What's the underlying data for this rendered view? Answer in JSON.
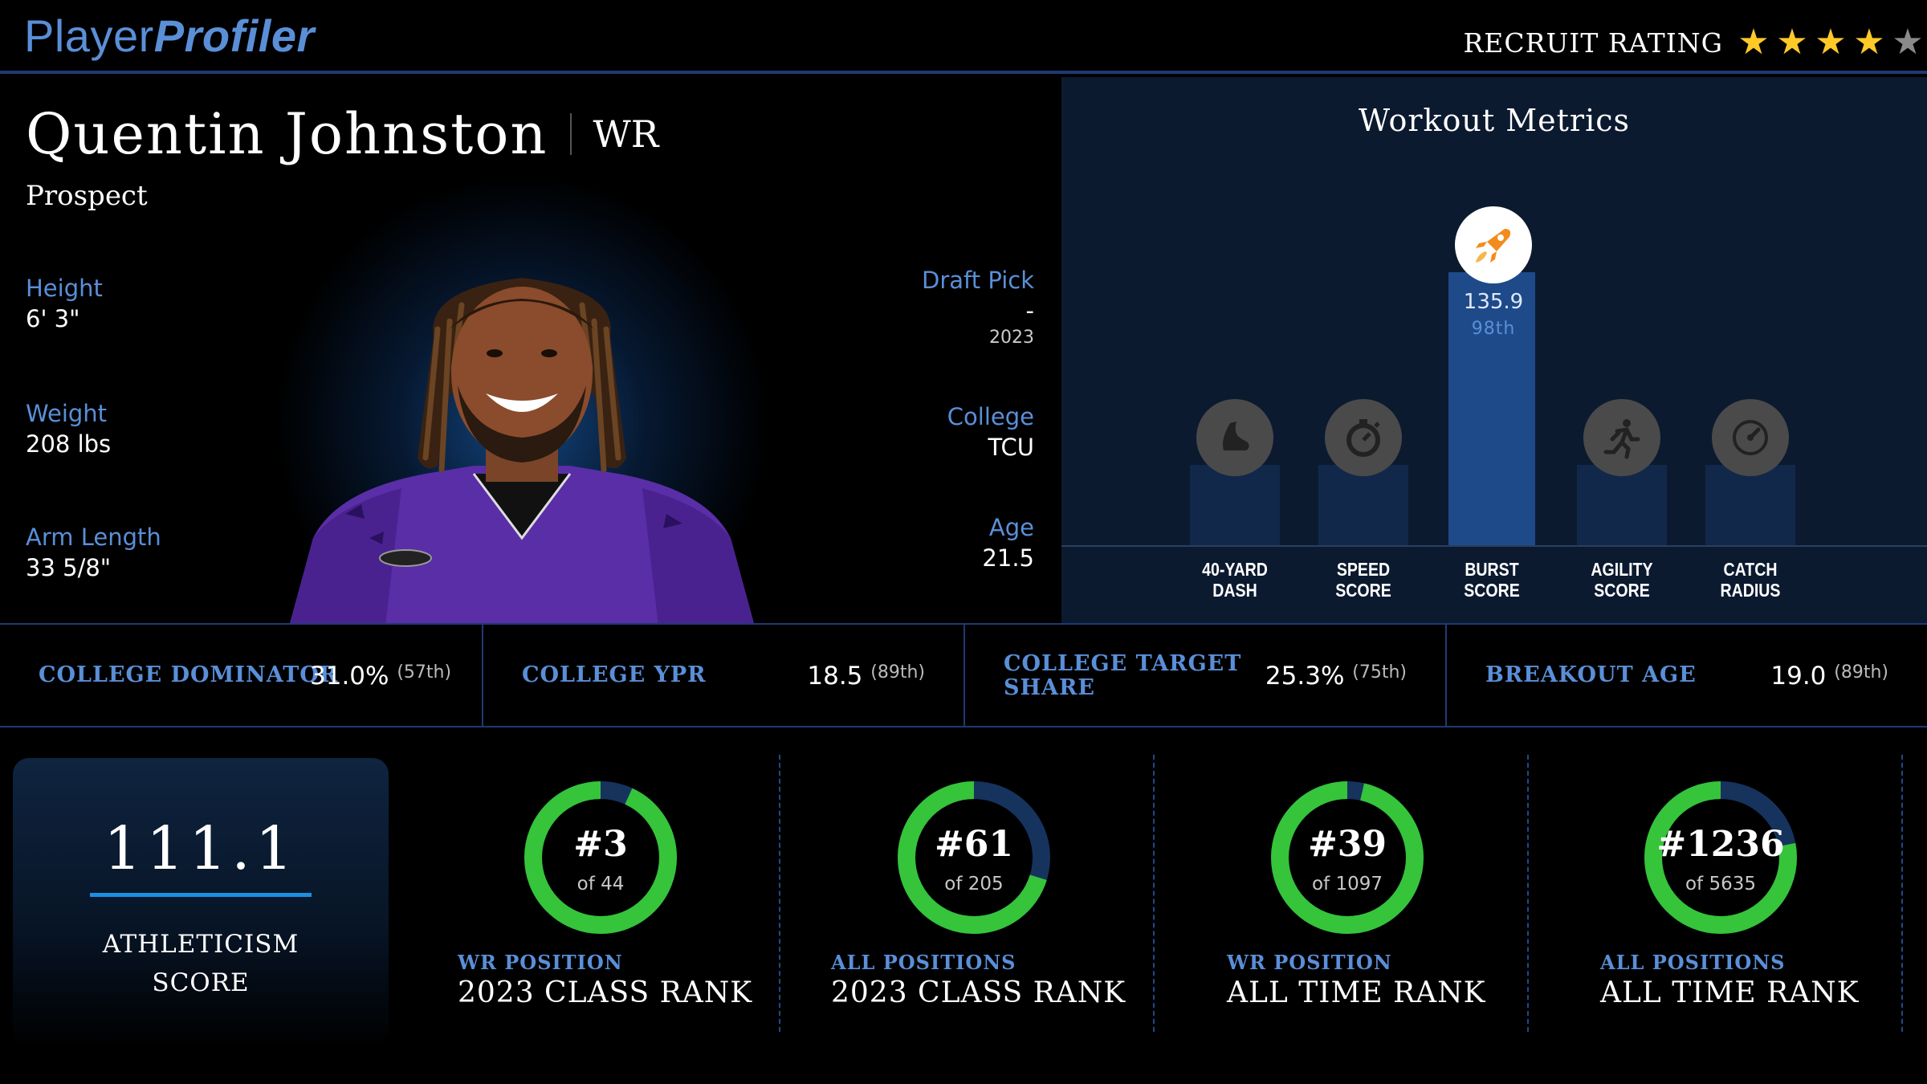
{
  "brand": {
    "part1": "Player",
    "part2": "Profiler"
  },
  "recruit_rating": {
    "label": "RECRUIT RATING",
    "stars": 4,
    "max_stars": 5
  },
  "player": {
    "name": "Quentin Johnston",
    "position": "WR",
    "status": "Prospect",
    "height": {
      "label": "Height",
      "value": "6' 3\""
    },
    "weight": {
      "label": "Weight",
      "value": "208 lbs"
    },
    "arm_length": {
      "label": "Arm Length",
      "value": "33 5/8\""
    },
    "draft_pick": {
      "label": "Draft Pick",
      "value": "-",
      "year": "2023"
    },
    "college": {
      "label": "College",
      "value": "TCU"
    },
    "age": {
      "label": "Age",
      "value": "21.5"
    }
  },
  "workout": {
    "title": "Workout Metrics",
    "metrics": [
      {
        "label_line1": "40-YARD",
        "label_line2": "DASH",
        "icon": "shoe-icon"
      },
      {
        "label_line1": "SPEED",
        "label_line2": "SCORE",
        "icon": "stopwatch-icon"
      },
      {
        "label_line1": "BURST",
        "label_line2": "SCORE",
        "icon": "rocket-icon",
        "value": "135.9",
        "percentile": "98th",
        "percentile_num": 98
      },
      {
        "label_line1": "AGILITY",
        "label_line2": "SCORE",
        "icon": "runner-icon"
      },
      {
        "label_line1": "CATCH",
        "label_line2": "RADIUS",
        "icon": "target-icon"
      }
    ]
  },
  "stats": [
    {
      "label": "COLLEGE DOMINATOR",
      "value": "31.0%",
      "pct": "(57th)"
    },
    {
      "label": "COLLEGE YPR",
      "value": "18.5",
      "pct": "(89th)"
    },
    {
      "label_line1": "COLLEGE TARGET",
      "label_line2": "SHARE",
      "value": "25.3%",
      "pct": "(75th)"
    },
    {
      "label": "BREAKOUT AGE",
      "value": "19.0",
      "pct": "(89th)"
    }
  ],
  "athleticism": {
    "score": "111.1",
    "label_line1": "ATHLETICISM",
    "label_line2": "SCORE"
  },
  "ranks": [
    {
      "rank": "#3",
      "of": "of 44",
      "rank_n": 3,
      "total_n": 44,
      "sub": "WR POSITION",
      "title": "2023 CLASS RANK"
    },
    {
      "rank": "#61",
      "of": "of 205",
      "rank_n": 61,
      "total_n": 205,
      "sub": "ALL POSITIONS",
      "title": "2023 CLASS RANK"
    },
    {
      "rank": "#39",
      "of": "of 1097",
      "rank_n": 39,
      "total_n": 1097,
      "sub": "WR POSITION",
      "title": "ALL TIME RANK"
    },
    {
      "rank": "#1236",
      "of": "of 5635",
      "rank_n": 1236,
      "total_n": 5635,
      "sub": "ALL POSITIONS",
      "title": "ALL TIME RANK"
    }
  ],
  "colors": {
    "accent": "#5a8fd8",
    "ring_fill": "#35c43a",
    "ring_track": "#16335e",
    "star_on": "#ffc928",
    "star_off": "#8a8a8a",
    "rocket": "#f28c1e"
  }
}
